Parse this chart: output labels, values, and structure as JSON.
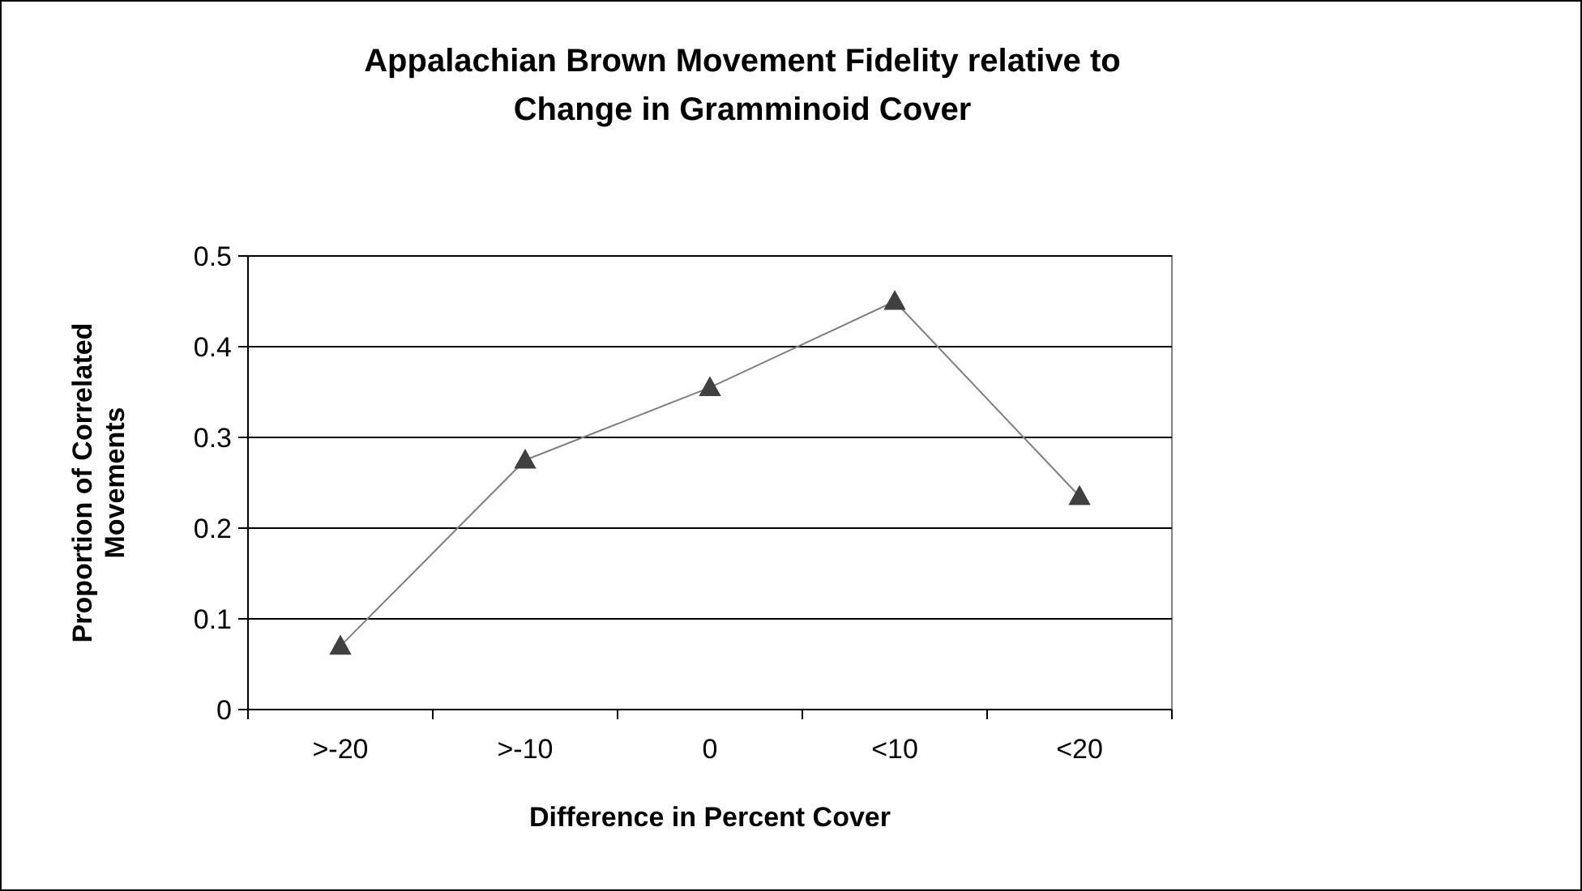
{
  "chart_data": {
    "type": "line",
    "title": "Appalachian Brown Movement Fidelity relative to Change in Gramminoid Cover",
    "xlabel": "Difference in Percent Cover",
    "ylabel": "Proportion of Correlated Movements",
    "categories": [
      ">-20",
      ">-10",
      "0",
      "<10",
      "<20"
    ],
    "series": [
      {
        "color": "#808080",
        "values": [
          0.07,
          0.275,
          0.355,
          0.45,
          0.235
        ]
      }
    ],
    "ylim": [
      0,
      0.5
    ],
    "yticks": [
      0,
      0.1,
      0.2,
      0.3,
      0.4,
      0.5
    ],
    "grid": "y",
    "marker": "triangle",
    "line_style": "solid"
  }
}
